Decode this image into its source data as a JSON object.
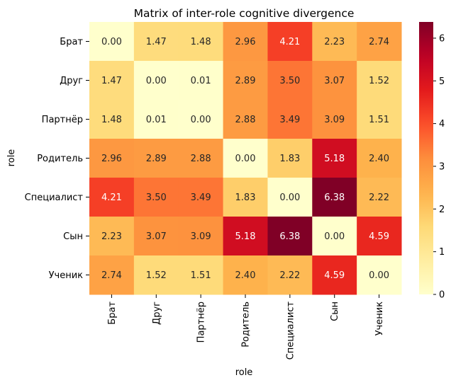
{
  "chart_data": {
    "type": "heatmap",
    "title": "Matrix of inter-role cognitive divergence",
    "xlabel": "role",
    "ylabel": "role",
    "x_categories": [
      "Брат",
      "Друг",
      "Партнёр",
      "Родитель",
      "Специалист",
      "Сын",
      "Ученик"
    ],
    "y_categories": [
      "Брат",
      "Друг",
      "Партнёр",
      "Родитель",
      "Специалист",
      "Сын",
      "Ученик"
    ],
    "values": [
      [
        0.0,
        1.47,
        1.48,
        2.96,
        4.21,
        2.23,
        2.74
      ],
      [
        1.47,
        0.0,
        0.01,
        2.89,
        3.5,
        3.07,
        1.52
      ],
      [
        1.48,
        0.01,
        0.0,
        2.88,
        3.49,
        3.09,
        1.51
      ],
      [
        2.96,
        2.89,
        2.88,
        0.0,
        1.83,
        5.18,
        2.4
      ],
      [
        4.21,
        3.5,
        3.49,
        1.83,
        0.0,
        6.38,
        2.22
      ],
      [
        2.23,
        3.07,
        3.09,
        5.18,
        6.38,
        0.0,
        4.59
      ],
      [
        2.74,
        1.52,
        1.51,
        2.4,
        2.22,
        4.59,
        0.0
      ]
    ],
    "value_format": "2 decimals",
    "colormap": "YlOrRd",
    "colorbar": {
      "range": [
        0,
        6.38
      ],
      "ticks": [
        0,
        1,
        2,
        3,
        4,
        5,
        6
      ]
    },
    "grid": false
  }
}
